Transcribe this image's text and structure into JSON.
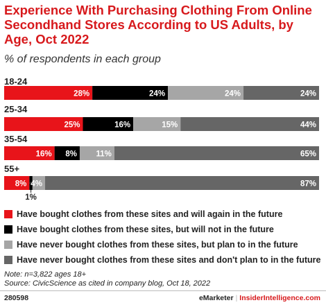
{
  "title": "Experience With Purchasing Clothing From Online Secondhand Stores According to US Adults, by Age, Oct 2022",
  "subtitle": "% of respondents in each group",
  "colors": {
    "accent": "#d7191c",
    "series": [
      "#e8141a",
      "#000000",
      "#a6a6a6",
      "#666666"
    ]
  },
  "chart_data": {
    "type": "bar",
    "orientation": "horizontal",
    "stacked": true,
    "categories": [
      "18-24",
      "25-34",
      "35-54",
      "55+"
    ],
    "series": [
      {
        "name": "Have bought clothes from these sites and will again in the future",
        "values": [
          28,
          25,
          16,
          8
        ],
        "labels": [
          "28%",
          "25%",
          "16%",
          "8%"
        ]
      },
      {
        "name": "Have bought clothes from these sites, but will not in the future",
        "values": [
          24,
          16,
          8,
          1
        ],
        "labels": [
          "24%",
          "16%",
          "8%",
          "1%"
        ]
      },
      {
        "name": "Have never bought clothes from these sites, but plan to in the future",
        "values": [
          24,
          15,
          11,
          4
        ],
        "labels": [
          "24%",
          "15%",
          "11%",
          "4%"
        ]
      },
      {
        "name": "Have never bought clothes from these sites and don't plan to in the future",
        "values": [
          24,
          44,
          65,
          87
        ],
        "labels": [
          "24%",
          "44%",
          "65%",
          "87%"
        ]
      }
    ],
    "xlim": [
      0,
      100
    ],
    "grid": false,
    "legend": "bottom"
  },
  "note": "Note: n=3,822 ages 18+",
  "source": "Source: CivicScience as cited in company blog, Oct 18, 2022",
  "footer": {
    "id": "280598",
    "brand": "eMarketer",
    "separator": "|",
    "site": "InsiderIntelligence.com"
  }
}
